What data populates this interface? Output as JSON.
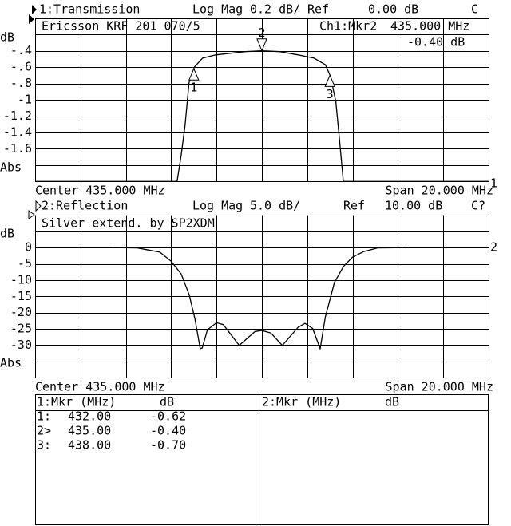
{
  "chart_data": [
    {
      "type": "line",
      "channel_label": "1:Transmission",
      "format": "Log Mag",
      "scale": "0.2 dB/",
      "ref_label": "Ref",
      "ref_value": "0.00 dB",
      "status": "C",
      "annotation": "Ericsson KRF 201 070/5",
      "marker_readout": {
        "label": "Ch1:Mkr2",
        "freq": "435.000 MHz",
        "value": "-0.40 dB"
      },
      "ylabel": "dB",
      "yticks": [
        "-.4",
        "-.6",
        "-.8",
        "-1",
        "-1.2",
        "-1.4",
        "-1.6"
      ],
      "ytick_values": [
        -0.4,
        -0.6,
        -0.8,
        -1.0,
        -1.2,
        -1.4,
        -1.6
      ],
      "format_label": "Abs",
      "center": "Center 435.000 MHz",
      "span": "Span 20.000 MHz",
      "right_label": "1",
      "xlim": [
        425,
        445
      ],
      "ylim": [
        -2.0,
        0.0
      ],
      "grid": true,
      "x": [
        425,
        431.26,
        431.44,
        431.61,
        431.79,
        432.02,
        432.38,
        432.96,
        434.26,
        435.0,
        435.79,
        436.6,
        437.3,
        437.8,
        438.02,
        438.26,
        438.43,
        438.59,
        445
      ],
      "y": [
        -2.0,
        -2.0,
        -1.68,
        -1.32,
        -0.79,
        -0.6,
        -0.49,
        -0.45,
        -0.41,
        -0.4,
        -0.41,
        -0.45,
        -0.49,
        -0.57,
        -0.71,
        -1.02,
        -1.51,
        -2.0,
        -2.0
      ],
      "markers": [
        {
          "label": "1",
          "freq": 432.0,
          "value": -0.62,
          "active": false
        },
        {
          "label": "2",
          "freq": 435.0,
          "value": -0.4,
          "active": true
        },
        {
          "label": "3",
          "freq": 438.0,
          "value": -0.7,
          "active": false
        }
      ]
    },
    {
      "type": "line",
      "channel_label": "2:Reflection",
      "format": "Log Mag",
      "scale": "5.0 dB/",
      "ref_label": "Ref",
      "ref_value": "10.00 dB",
      "status": "C?",
      "annotation": "Silver extend. by SP2XDM",
      "ylabel": "dB",
      "yticks": [
        "0",
        "-5",
        "-10",
        "-15",
        "-20",
        "-25",
        "-30"
      ],
      "ytick_values": [
        0,
        -5,
        -10,
        -15,
        -20,
        -25,
        -30
      ],
      "format_label": "Abs",
      "center": "Center 435.000 MHz",
      "span": "Span 20.000 MHz",
      "right_label": "2",
      "xlim": [
        425,
        445
      ],
      "ylim": [
        -40,
        10
      ],
      "grid": true,
      "x": [
        428.45,
        429.5,
        429.9,
        430.5,
        431.0,
        431.44,
        431.8,
        432.05,
        432.28,
        432.37,
        432.6,
        433.0,
        433.3,
        434.0,
        434.7,
        435.0,
        435.4,
        435.9,
        436.6,
        436.9,
        437.24,
        437.57,
        437.8,
        438.2,
        438.6,
        439.0,
        439.5,
        440.1,
        441.3
      ],
      "y": [
        0,
        -0.1,
        -0.6,
        -1.4,
        -4.2,
        -8.1,
        -14.6,
        -22,
        -31.1,
        -30.9,
        -25.3,
        -23.1,
        -23.7,
        -30.1,
        -25.8,
        -25.5,
        -26.3,
        -30.1,
        -24.5,
        -23.3,
        -24.9,
        -31.1,
        -21.3,
        -10.7,
        -5.8,
        -2.9,
        -1.2,
        -0.1,
        0
      ]
    }
  ],
  "marker_table": {
    "left": {
      "header_mkr": "1:Mkr (MHz)",
      "header_unit": "dB",
      "rows": [
        {
          "id": "1:",
          "freq": "432.00",
          "value": "-0.62"
        },
        {
          "id": "2>",
          "freq": "435.00",
          "value": "-0.40"
        },
        {
          "id": "3:",
          "freq": "438.00",
          "value": "-0.70"
        }
      ]
    },
    "right": {
      "header_mkr": "2:Mkr (MHz)",
      "header_unit": "dB",
      "rows": []
    }
  },
  "icons": {
    "active_channel": "filled-right-triangle",
    "inactive_channel": "outline-right-triangle"
  }
}
